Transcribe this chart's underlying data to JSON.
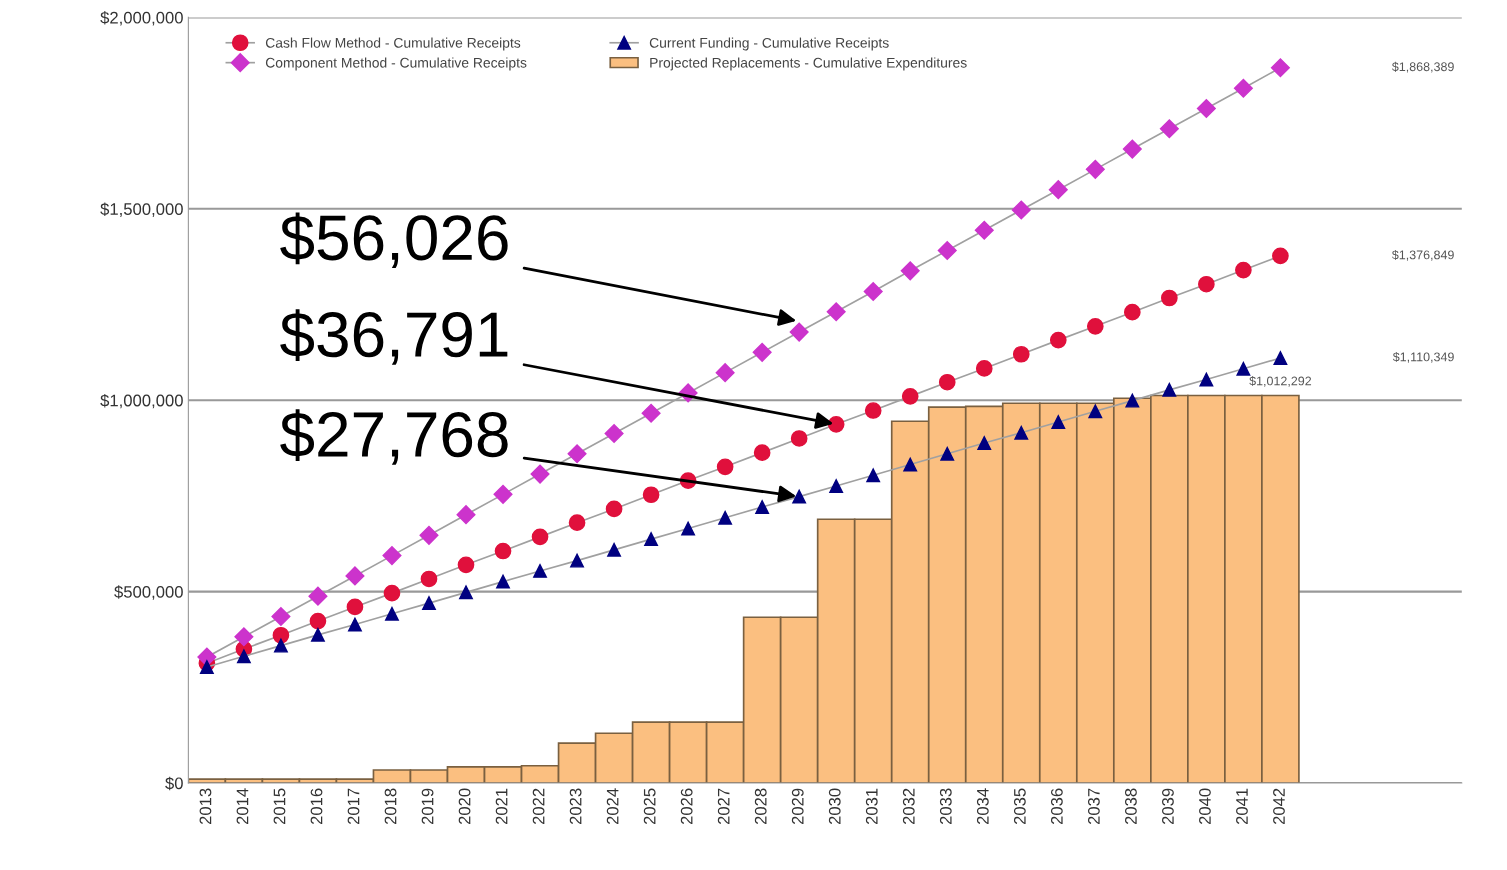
{
  "chart_data": {
    "type": "bar",
    "categories": [
      "2013",
      "2014",
      "2015",
      "2016",
      "2017",
      "2018",
      "2019",
      "2020",
      "2021",
      "2022",
      "2023",
      "2024",
      "2025",
      "2026",
      "2027",
      "2028",
      "2029",
      "2030",
      "2031",
      "2032",
      "2033",
      "2034",
      "2035",
      "2036",
      "2037",
      "2038",
      "2039",
      "2040",
      "2041",
      "2042"
    ],
    "series": [
      {
        "name": "Projected Replacements - Cumulative Expenditures",
        "color": "#fbbf80",
        "values": [
          10000,
          10000,
          10000,
          10000,
          10000,
          34000,
          34000,
          42000,
          42000,
          45000,
          104000,
          130000,
          159000,
          159000,
          159000,
          433000,
          433000,
          689000,
          689000,
          945000,
          982000,
          984000,
          992000,
          992000,
          992000,
          1005000,
          1012292,
          1012292,
          1012292,
          1012292
        ]
      },
      {
        "name": "Cash Flow Method - Cumulative Receipts",
        "type": "line",
        "marker": "circle",
        "color": "#e0103c",
        "values": [
          313000,
          350000,
          386000,
          423000,
          460000,
          496000,
          533000,
          570000,
          606000,
          643000,
          680000,
          716000,
          753000,
          790000,
          826000,
          863000,
          900000,
          937000,
          973000,
          1010000,
          1047000,
          1083000,
          1120000,
          1157000,
          1193000,
          1230000,
          1267000,
          1303000,
          1340000,
          1376849
        ]
      },
      {
        "name": "Component Method - Cumulative Receipts",
        "type": "line",
        "marker": "diamond",
        "color": "#cc33cc",
        "values": [
          329000,
          382000,
          435000,
          488000,
          541000,
          594000,
          647000,
          701000,
          754000,
          807000,
          860000,
          913000,
          966000,
          1019000,
          1072000,
          1125000,
          1178000,
          1231000,
          1284000,
          1338000,
          1391000,
          1444000,
          1497000,
          1550000,
          1603000,
          1656000,
          1709000,
          1762000,
          1815000,
          1868389
        ]
      },
      {
        "name": "Current Funding - Cumulative Receipts",
        "type": "line",
        "marker": "triangle",
        "color": "#000080",
        "values": [
          303000,
          331000,
          359000,
          387000,
          414000,
          442000,
          470000,
          498000,
          526000,
          554000,
          581000,
          609000,
          637000,
          665000,
          693000,
          721000,
          748000,
          776000,
          804000,
          832000,
          860000,
          888000,
          915000,
          943000,
          971000,
          999000,
          1027000,
          1054000,
          1082000,
          1110349
        ]
      }
    ],
    "ylim": [
      0,
      2000000
    ],
    "yticks": [
      {
        "value": 0,
        "label": "$0"
      },
      {
        "value": 500000,
        "label": "$500,000"
      },
      {
        "value": 1000000,
        "label": "$1,000,000"
      },
      {
        "value": 1500000,
        "label": "$1,500,000"
      },
      {
        "value": 2000000,
        "label": "$2,000,000"
      }
    ],
    "grid": "y",
    "legend": "top left",
    "annotations": [
      {
        "text": "$56,026",
        "x": "2029",
        "y": 1206000
      },
      {
        "text": "$36,791",
        "x": "2030",
        "y": 937000
      },
      {
        "text": "$27,768",
        "x": "2029",
        "y": 748000
      },
      "$1,868,389",
      "$1,376,849",
      "$1,110,349",
      {
        "text": "$1,012,292",
        "x": "2042",
        "y": 1012292
      }
    ]
  }
}
